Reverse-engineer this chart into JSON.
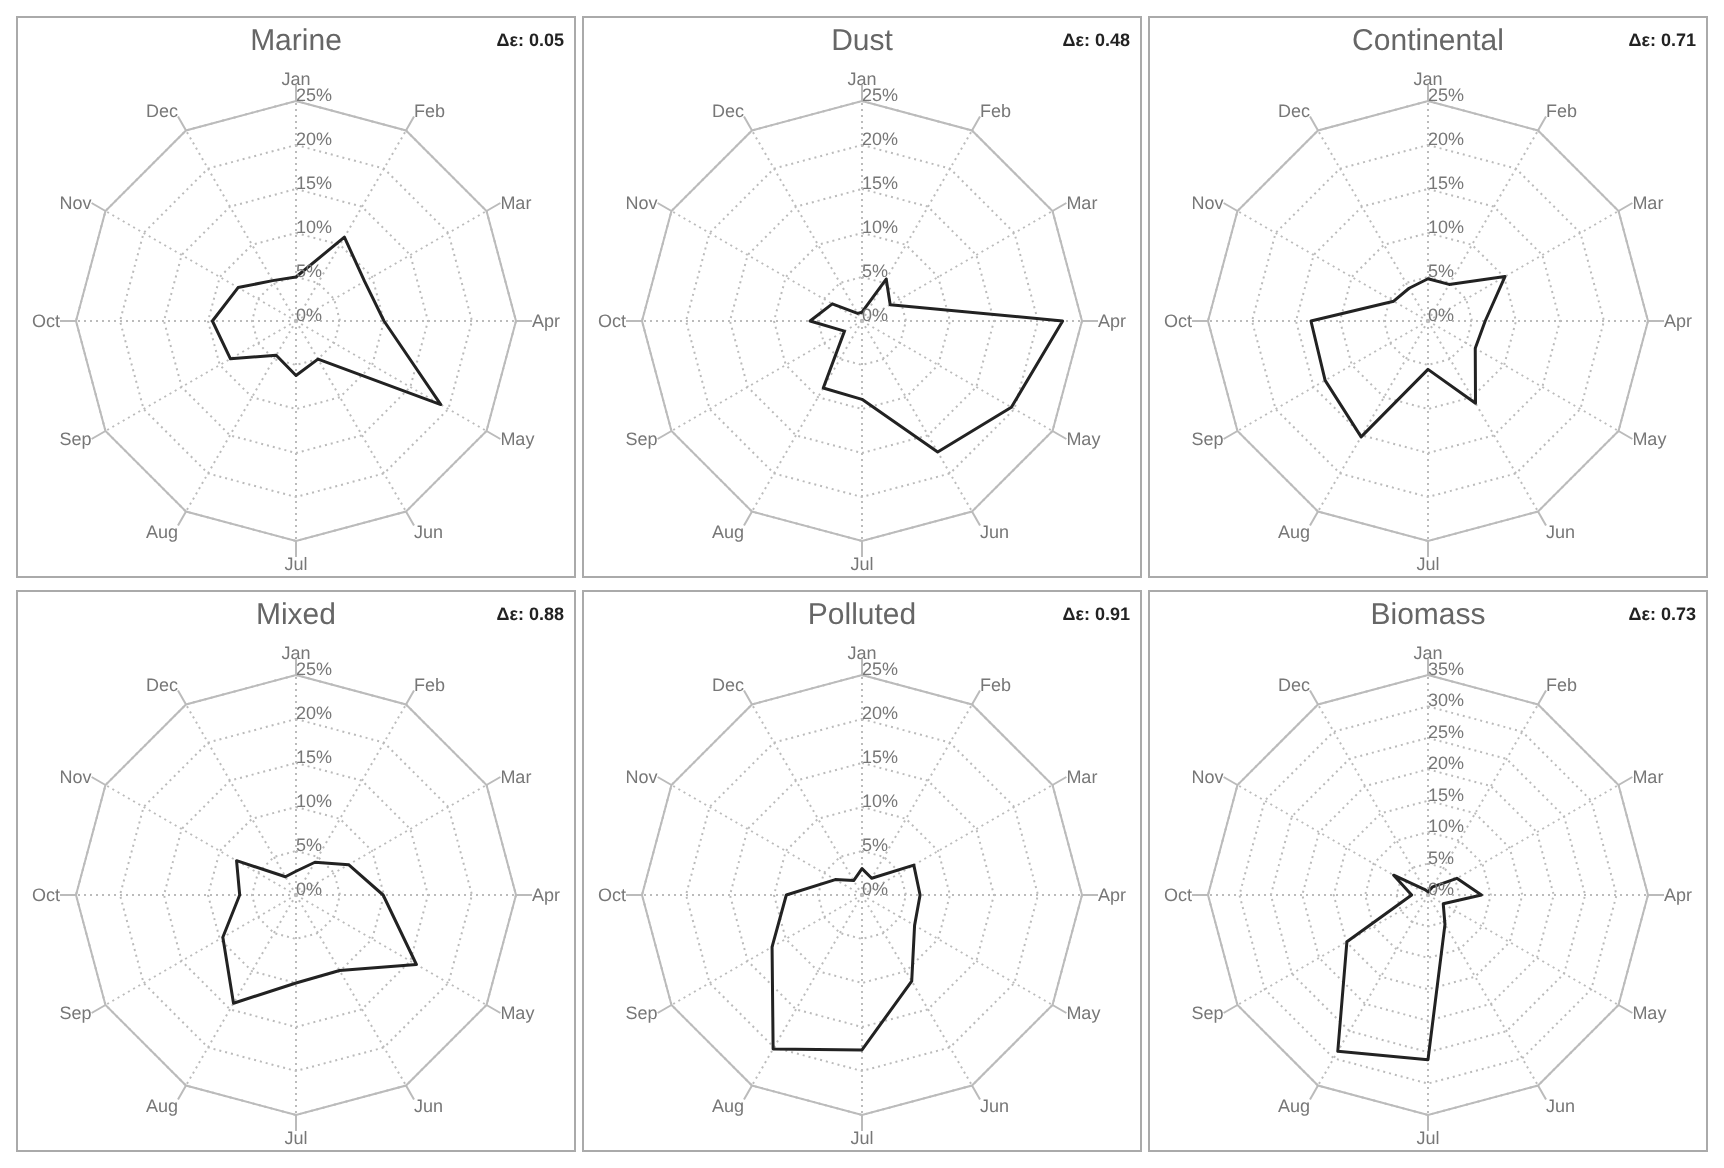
{
  "chart_data": [
    {
      "type": "radar",
      "title": "Marine",
      "annotations": [
        "Δε: 0.05"
      ],
      "categories": [
        "Jan",
        "Feb",
        "Mar",
        "Apr",
        "May",
        "Jun",
        "Jul",
        "Aug",
        "Sep",
        "Oct",
        "Nov",
        "Dec"
      ],
      "ylim": [
        0,
        25
      ],
      "yticks": [
        {
          "value": 0,
          "label": "0%"
        },
        {
          "value": 5,
          "label": "5%"
        },
        {
          "value": 10,
          "label": "10%"
        },
        {
          "value": 15,
          "label": "15%"
        },
        {
          "value": 20,
          "label": "20%"
        },
        {
          "value": 25,
          "label": "25%"
        }
      ],
      "grid": true,
      "series": [
        {
          "color": "#222222",
          "values": [
            5,
            11,
            9,
            10,
            19,
            5,
            6.2,
            4.5,
            8.6,
            9.5,
            7.6,
            5.3
          ]
        }
      ]
    },
    {
      "type": "radar",
      "title": "Dust",
      "annotations": [
        "Δε: 0.48"
      ],
      "categories": [
        "Jan",
        "Feb",
        "Mar",
        "Apr",
        "May",
        "Jun",
        "Jul",
        "Aug",
        "Sep",
        "Oct",
        "Nov",
        "Dec"
      ],
      "ylim": [
        0,
        25
      ],
      "yticks": [
        {
          "value": 0,
          "label": "0%"
        },
        {
          "value": 5,
          "label": "5%"
        },
        {
          "value": 10,
          "label": "10%"
        },
        {
          "value": 15,
          "label": "15%"
        },
        {
          "value": 20,
          "label": "20%"
        },
        {
          "value": 25,
          "label": "25%"
        }
      ],
      "grid": true,
      "series": [
        {
          "color": "#222222",
          "values": [
            1,
            5.5,
            3.7,
            22.8,
            19.6,
            17.2,
            8.9,
            8.8,
            2.3,
            5.9,
            3.9,
            1
          ]
        }
      ]
    },
    {
      "type": "radar",
      "title": "Continental",
      "annotations": [
        "Δε: 0.71"
      ],
      "categories": [
        "Jan",
        "Feb",
        "Mar",
        "Apr",
        "May",
        "Jun",
        "Jul",
        "Aug",
        "Sep",
        "Oct",
        "Nov",
        "Dec"
      ],
      "ylim": [
        0,
        25
      ],
      "yticks": [
        {
          "value": 0,
          "label": "0%"
        },
        {
          "value": 5,
          "label": "5%"
        },
        {
          "value": 10,
          "label": "10%"
        },
        {
          "value": 15,
          "label": "15%"
        },
        {
          "value": 20,
          "label": "20%"
        },
        {
          "value": 25,
          "label": "25%"
        }
      ],
      "grid": true,
      "series": [
        {
          "color": "#222222",
          "values": [
            4.8,
            4.8,
            10.1,
            6.5,
            6.2,
            10.8,
            5.5,
            15.2,
            13.5,
            13.3,
            4.5,
            4.3
          ]
        }
      ]
    },
    {
      "type": "radar",
      "title": "Mixed",
      "annotations": [
        "Δε: 0.88"
      ],
      "categories": [
        "Jan",
        "Feb",
        "Mar",
        "Apr",
        "May",
        "Jun",
        "Jul",
        "Aug",
        "Sep",
        "Oct",
        "Nov",
        "Dec"
      ],
      "ylim": [
        0,
        25
      ],
      "yticks": [
        {
          "value": 0,
          "label": "0%"
        },
        {
          "value": 5,
          "label": "5%"
        },
        {
          "value": 10,
          "label": "10%"
        },
        {
          "value": 15,
          "label": "15%"
        },
        {
          "value": 20,
          "label": "20%"
        },
        {
          "value": 25,
          "label": "25%"
        }
      ],
      "grid": true,
      "series": [
        {
          "color": "#222222",
          "values": [
            2.7,
            4.3,
            6.9,
            9.9,
            15.8,
            9.9,
            10,
            14.2,
            9.6,
            6.4,
            7.8,
            2.4
          ]
        }
      ]
    },
    {
      "type": "radar",
      "title": "Polluted",
      "annotations": [
        "Δε: 0.91"
      ],
      "categories": [
        "Jan",
        "Feb",
        "Mar",
        "Apr",
        "May",
        "Jun",
        "Jul",
        "Aug",
        "Sep",
        "Oct",
        "Nov",
        "Dec"
      ],
      "ylim": [
        0,
        25
      ],
      "yticks": [
        {
          "value": 0,
          "label": "0%"
        },
        {
          "value": 5,
          "label": "5%"
        },
        {
          "value": 10,
          "label": "10%"
        },
        {
          "value": 15,
          "label": "15%"
        },
        {
          "value": 20,
          "label": "20%"
        },
        {
          "value": 25,
          "label": "25%"
        }
      ],
      "grid": true,
      "series": [
        {
          "color": "#222222",
          "values": [
            3,
            2.2,
            6.8,
            6.6,
            6.9,
            11.3,
            17.6,
            20.2,
            11.8,
            8.6,
            3.5,
            1.9
          ]
        }
      ]
    },
    {
      "type": "radar",
      "title": "Biomass",
      "annotations": [
        "Δε: 0.73"
      ],
      "categories": [
        "Jan",
        "Feb",
        "Mar",
        "Apr",
        "May",
        "Jun",
        "Jul",
        "Aug",
        "Sep",
        "Oct",
        "Nov",
        "Dec"
      ],
      "ylim": [
        0,
        35
      ],
      "yticks": [
        {
          "value": 0,
          "label": "0%"
        },
        {
          "value": 5,
          "label": "5%"
        },
        {
          "value": 10,
          "label": "10%"
        },
        {
          "value": 15,
          "label": "15%"
        },
        {
          "value": 20,
          "label": "20%"
        },
        {
          "value": 25,
          "label": "25%"
        },
        {
          "value": 30,
          "label": "30%"
        },
        {
          "value": 35,
          "label": "35%"
        }
      ],
      "grid": true,
      "series": [
        {
          "color": "#222222",
          "values": [
            0.5,
            1.5,
            5.3,
            8.5,
            2.8,
            5.4,
            26.2,
            28.7,
            14.9,
            2.6,
            6.3,
            1
          ]
        }
      ]
    }
  ]
}
